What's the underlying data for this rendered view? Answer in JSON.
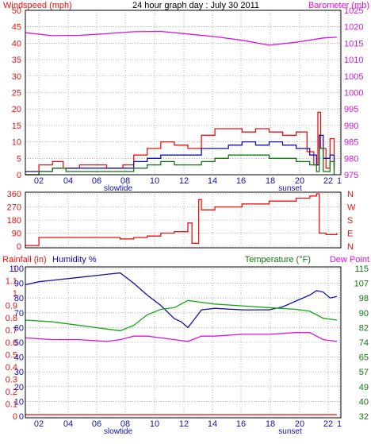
{
  "colors": {
    "red": "#ee1111",
    "magenta": "#dd11dd",
    "navy": "#1111aa",
    "darkgreen": "#117711",
    "green": "#11aa11",
    "frame": "#000000",
    "grid": "#777777"
  },
  "chart_data": [
    {
      "type": "line",
      "title": "24 hour graph day : July 30 2011",
      "x_tick_labels": [
        "02",
        "04",
        "06",
        "08",
        "10",
        "12",
        "14",
        "16",
        "18",
        "20",
        "22",
        "1"
      ],
      "x_labels_extra": [
        {
          "text": "slowtide",
          "at": "06"
        },
        {
          "text": "sunset",
          "at": "20"
        }
      ],
      "left_axis": {
        "label": "Windspeed (mph)",
        "ticks": [
          "0",
          "5",
          "10",
          "15",
          "20",
          "25",
          "30",
          "35",
          "40",
          "45",
          "50"
        ],
        "ylim": [
          0,
          50
        ]
      },
      "right_axis": {
        "label": "Barometer (mb)",
        "ticks": [
          "975",
          "980",
          "985",
          "990",
          "995",
          "1000",
          "1005",
          "1010",
          "1015",
          "1020",
          "1025"
        ],
        "ylim": [
          975,
          1025
        ]
      },
      "grid": true,
      "series": [
        {
          "key": "gust",
          "axis": "left",
          "color": "#ee1111",
          "points": [
            [
              0,
              0
            ],
            [
              1,
              3
            ],
            [
              2,
              4
            ],
            [
              2.8,
              2
            ],
            [
              4,
              3
            ],
            [
              6,
              2
            ],
            [
              7.2,
              3
            ],
            [
              8,
              6
            ],
            [
              9,
              8
            ],
            [
              10,
              10
            ],
            [
              11,
              9
            ],
            [
              12,
              8
            ],
            [
              13,
              12
            ],
            [
              14,
              14
            ],
            [
              15,
              14
            ],
            [
              16,
              13
            ],
            [
              17,
              14
            ],
            [
              18,
              13
            ],
            [
              19,
              12
            ],
            [
              20,
              13
            ],
            [
              20.8,
              7
            ],
            [
              21.3,
              3
            ],
            [
              21.6,
              19
            ],
            [
              21.8,
              8
            ],
            [
              22.2,
              2
            ],
            [
              22.5,
              11
            ],
            [
              22.8,
              1
            ]
          ]
        },
        {
          "key": "average",
          "axis": "left",
          "color": "#1111aa",
          "points": [
            [
              0,
              1
            ],
            [
              2,
              2
            ],
            [
              4,
              2
            ],
            [
              6,
              2
            ],
            [
              7.2,
              2
            ],
            [
              8,
              4
            ],
            [
              9,
              5
            ],
            [
              10,
              6
            ],
            [
              11,
              6
            ],
            [
              12,
              6
            ],
            [
              13,
              8
            ],
            [
              14,
              8
            ],
            [
              15,
              9
            ],
            [
              16,
              10
            ],
            [
              17,
              9
            ],
            [
              18,
              10
            ],
            [
              19,
              9
            ],
            [
              20,
              8
            ],
            [
              21,
              6
            ],
            [
              21.5,
              3
            ],
            [
              21.7,
              12
            ],
            [
              22,
              5
            ],
            [
              22.5,
              6
            ],
            [
              22.8,
              2
            ]
          ]
        },
        {
          "key": "lull",
          "axis": "left",
          "color": "#117711",
          "points": [
            [
              0,
              0
            ],
            [
              1,
              1
            ],
            [
              2,
              2
            ],
            [
              3,
              1
            ],
            [
              4,
              1
            ],
            [
              6,
              1
            ],
            [
              7.2,
              1
            ],
            [
              8,
              2
            ],
            [
              9,
              3
            ],
            [
              10,
              4
            ],
            [
              11,
              3
            ],
            [
              12,
              3
            ],
            [
              13,
              4
            ],
            [
              14,
              5
            ],
            [
              15,
              6
            ],
            [
              16,
              6
            ],
            [
              17,
              6
            ],
            [
              18,
              5
            ],
            [
              19,
              5
            ],
            [
              20,
              4
            ],
            [
              21,
              3
            ],
            [
              21.5,
              1
            ],
            [
              21.7,
              8
            ],
            [
              22,
              1
            ],
            [
              22.5,
              4
            ],
            [
              22.8,
              0
            ]
          ]
        },
        {
          "key": "barometer",
          "axis": "right",
          "color": "#dd11dd",
          "points": [
            [
              0,
              1018.2
            ],
            [
              2,
              1017.3
            ],
            [
              4,
              1017.4
            ],
            [
              6,
              1017.9
            ],
            [
              8,
              1018.5
            ],
            [
              10,
              1018.6
            ],
            [
              12,
              1017.8
            ],
            [
              14,
              1017.0
            ],
            [
              16,
              1015.9
            ],
            [
              18,
              1014.4
            ],
            [
              20,
              1015.3
            ],
            [
              22,
              1016.6
            ],
            [
              23,
              1016.8
            ]
          ]
        }
      ]
    },
    {
      "type": "line",
      "left_axis": {
        "ticks": [
          "0",
          "90",
          "180",
          "270",
          "360"
        ],
        "ylim": [
          0,
          360
        ]
      },
      "right_axis": {
        "ticks": [
          "N",
          "E",
          "S",
          "W",
          "N"
        ]
      },
      "grid": true,
      "series": [
        {
          "key": "wind_direction",
          "axis": "left",
          "color": "#ee1111",
          "points": [
            [
              0,
              5
            ],
            [
              1,
              60
            ],
            [
              2,
              60
            ],
            [
              4,
              60
            ],
            [
              6,
              60
            ],
            [
              7,
              50
            ],
            [
              8,
              60
            ],
            [
              9,
              70
            ],
            [
              10,
              90
            ],
            [
              11,
              100
            ],
            [
              12,
              160
            ],
            [
              12.3,
              20
            ],
            [
              12.8,
              320
            ],
            [
              13,
              250
            ],
            [
              14,
              270
            ],
            [
              16,
              290
            ],
            [
              18,
              310
            ],
            [
              20,
              330
            ],
            [
              21,
              345
            ],
            [
              21.5,
              360
            ],
            [
              21.7,
              90
            ],
            [
              22.2,
              80
            ],
            [
              23,
              90
            ]
          ]
        }
      ]
    },
    {
      "type": "line",
      "left_axis_labels": [
        "Rainfall (in)",
        "Humidity %"
      ],
      "right_axis_labels": [
        "Temperature (°F)",
        "Dew Point"
      ],
      "axis_rainfall": {
        "ticks": [
          "0",
          "0.1",
          "0.2",
          "0.3",
          "0.4",
          "0.5",
          "0.6",
          "0.7",
          "0.8",
          "0.9",
          "1",
          "1.1",
          "1"
        ],
        "ylim": [
          0,
          1.2
        ]
      },
      "axis_humidity": {
        "ticks": [
          "0",
          "10",
          "20",
          "30",
          "40",
          "50",
          "60",
          "70",
          "80",
          "90",
          "100"
        ],
        "ylim": [
          0,
          100
        ]
      },
      "axis_temperature": {
        "ticks": [
          "32",
          "40",
          "49",
          "57",
          "65",
          "74",
          "82",
          "90",
          "98",
          "107",
          "115"
        ],
        "ylim": [
          32,
          115
        ]
      },
      "grid": true,
      "series": [
        {
          "key": "rainfall",
          "axis": "rainfall",
          "color": "#ee1111",
          "points": [
            [
              0,
              0
            ],
            [
              23,
              0
            ]
          ]
        },
        {
          "key": "humidity",
          "axis": "humidity",
          "color": "#1111aa",
          "points": [
            [
              0,
              89
            ],
            [
              1,
              91
            ],
            [
              2,
              92
            ],
            [
              4,
              94
            ],
            [
              6,
              96
            ],
            [
              7,
              97
            ],
            [
              8,
              90
            ],
            [
              9,
              82
            ],
            [
              10,
              75
            ],
            [
              11,
              66
            ],
            [
              11.5,
              64
            ],
            [
              12,
              60
            ],
            [
              12.6,
              67
            ],
            [
              13,
              72
            ],
            [
              14,
              73
            ],
            [
              16,
              72
            ],
            [
              18,
              72
            ],
            [
              19,
              74
            ],
            [
              20,
              78
            ],
            [
              21,
              82
            ],
            [
              21.5,
              85
            ],
            [
              22,
              84
            ],
            [
              22.5,
              80
            ],
            [
              23,
              81
            ]
          ]
        },
        {
          "key": "temperature",
          "axis": "temperature",
          "color": "#11aa11",
          "points": [
            [
              0,
              86
            ],
            [
              2,
              85
            ],
            [
              4,
              83
            ],
            [
              6,
              81
            ],
            [
              7,
              80
            ],
            [
              8,
              83
            ],
            [
              9,
              89
            ],
            [
              10,
              92
            ],
            [
              11,
              93
            ],
            [
              12,
              97
            ],
            [
              13,
              96
            ],
            [
              14,
              95
            ],
            [
              16,
              94
            ],
            [
              18,
              93
            ],
            [
              20,
              92
            ],
            [
              21,
              91
            ],
            [
              22,
              87
            ],
            [
              23,
              86
            ]
          ]
        },
        {
          "key": "dew_point",
          "axis": "temperature",
          "color": "#dd11dd",
          "points": [
            [
              0,
              76
            ],
            [
              2,
              75
            ],
            [
              4,
              75
            ],
            [
              6,
              74
            ],
            [
              7,
              75
            ],
            [
              8,
              77
            ],
            [
              9,
              77
            ],
            [
              10,
              76
            ],
            [
              11,
              75
            ],
            [
              12,
              74
            ],
            [
              13,
              77
            ],
            [
              14,
              77
            ],
            [
              16,
              78
            ],
            [
              18,
              78
            ],
            [
              20,
              79
            ],
            [
              21,
              79
            ],
            [
              22,
              75
            ],
            [
              23,
              74
            ]
          ]
        }
      ]
    }
  ]
}
